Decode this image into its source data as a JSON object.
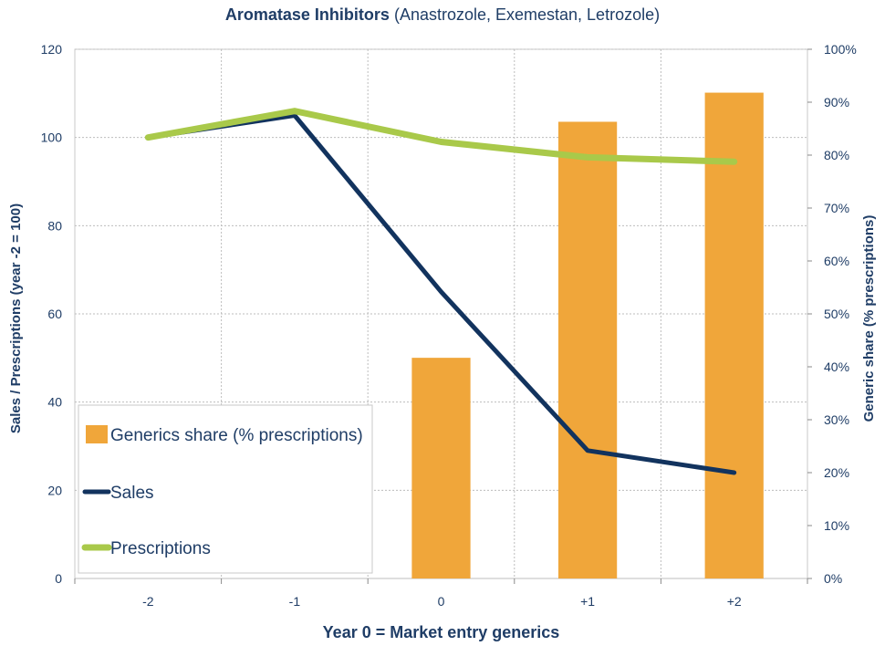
{
  "title": "Aromatase Inhibitors",
  "subtitle": "(Anastrozole, Exemestan, Letrozole)",
  "chart_data": {
    "type": "bar",
    "categories": [
      "-2",
      "-1",
      "0",
      "+1",
      "+2"
    ],
    "xlabel": "Year 0 = Market entry generics",
    "ylabel": "Sales / Prescriptions (year -2 = 100)",
    "y2label": "Generic share (% prescriptions)",
    "ylim": [
      0,
      120
    ],
    "yticks": [
      "0",
      "20",
      "40",
      "60",
      "80",
      "100",
      "120"
    ],
    "y2lim": [
      0,
      100
    ],
    "y2ticks": [
      "0%",
      "10%",
      "20%",
      "30%",
      "40%",
      "50%",
      "60%",
      "70%",
      "80%",
      "90%",
      "100%"
    ],
    "grid": true,
    "legend_position": "bottom-left",
    "series": [
      {
        "name": "Generics share (% prescriptions)",
        "kind": "bar",
        "axis": "right",
        "color": "#f0a63a",
        "values": [
          null,
          null,
          41.7,
          86.3,
          91.8
        ]
      },
      {
        "name": "Sales",
        "kind": "line",
        "axis": "left",
        "color": "#12335e",
        "values": [
          100,
          105,
          65,
          29,
          24
        ]
      },
      {
        "name": "Prescriptions",
        "kind": "line",
        "axis": "left",
        "color": "#a9c94a",
        "values": [
          100,
          106,
          99,
          95.5,
          94.5
        ]
      }
    ]
  }
}
